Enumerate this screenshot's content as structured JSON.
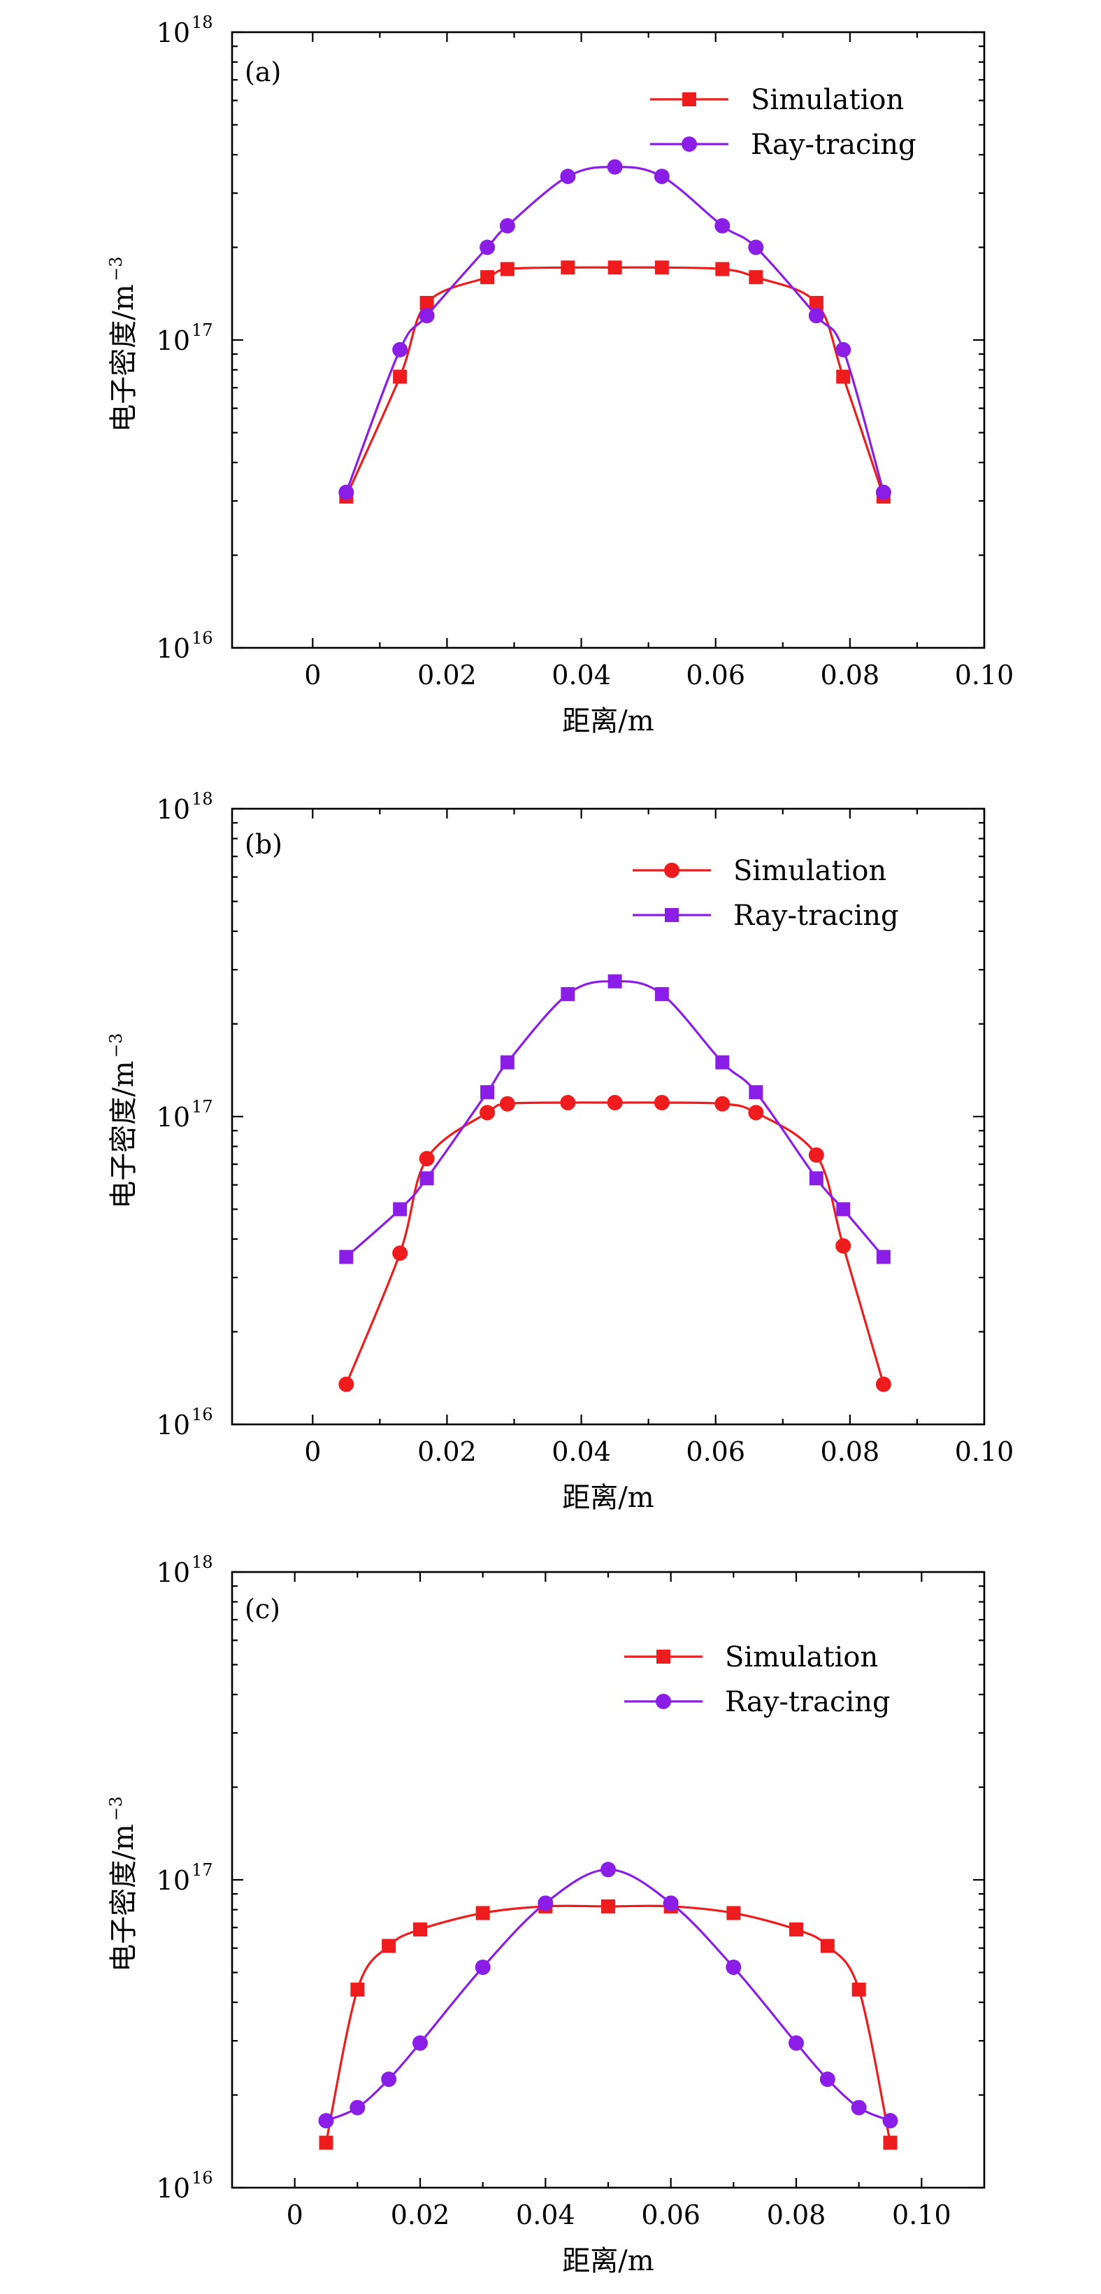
{
  "colors": {
    "red": "#ee1c1c",
    "purple": "#8b1ee6"
  },
  "chart_data": [
    {
      "type": "line",
      "panel_label": "(a)",
      "xlabel": "距离/m",
      "ylabel": "电子密度/m",
      "ylabel_exponent": "−3",
      "xlim": [
        -0.012,
        0.1
      ],
      "x_ticks": [
        "0",
        "0.02",
        "0.04",
        "0.06",
        "0.08",
        "0.10"
      ],
      "y_scale": "log",
      "ylim": [
        1e+16,
        1e+18
      ],
      "y_ticks": [
        {
          "base": "10",
          "exp": "16"
        },
        {
          "base": "10",
          "exp": "17"
        },
        {
          "base": "10",
          "exp": "18"
        }
      ],
      "legend_position": "top-right",
      "series": [
        {
          "name": "Simulation",
          "color": "#ee1c1c",
          "marker": "square",
          "x": [
            0.005,
            0.013,
            0.017,
            0.026,
            0.029,
            0.038,
            0.045,
            0.052,
            0.061,
            0.066,
            0.075,
            0.079,
            0.085
          ],
          "y": [
            3.1e+16,
            7.6e+16,
            1.32e+17,
            1.6e+17,
            1.7e+17,
            1.72e+17,
            1.72e+17,
            1.72e+17,
            1.7e+17,
            1.6e+17,
            1.32e+17,
            7.6e+16,
            3.1e+16
          ]
        },
        {
          "name": "Ray-tracing",
          "color": "#8b1ee6",
          "marker": "circle",
          "x": [
            0.005,
            0.013,
            0.017,
            0.026,
            0.029,
            0.038,
            0.045,
            0.052,
            0.061,
            0.066,
            0.075,
            0.079,
            0.085
          ],
          "y": [
            3.2e+16,
            9.3e+16,
            1.2e+17,
            2e+17,
            2.35e+17,
            3.4e+17,
            3.65e+17,
            3.4e+17,
            2.35e+17,
            2e+17,
            1.2e+17,
            9.3e+16,
            3.2e+16
          ]
        }
      ]
    },
    {
      "type": "line",
      "panel_label": "(b)",
      "xlabel": "距离/m",
      "ylabel": "电子密度/m",
      "ylabel_exponent": "−3",
      "xlim": [
        -0.012,
        0.1
      ],
      "x_ticks": [
        "0",
        "0.02",
        "0.04",
        "0.06",
        "0.08",
        "0.10"
      ],
      "y_scale": "log",
      "ylim": [
        1e+16,
        1e+18
      ],
      "y_ticks": [
        {
          "base": "10",
          "exp": "16"
        },
        {
          "base": "10",
          "exp": "17"
        },
        {
          "base": "10",
          "exp": "18"
        }
      ],
      "legend_position": "top-right",
      "series": [
        {
          "name": "Simulation",
          "color": "#ee1c1c",
          "marker": "circle",
          "x": [
            0.005,
            0.013,
            0.017,
            0.026,
            0.029,
            0.038,
            0.045,
            0.052,
            0.061,
            0.066,
            0.075,
            0.079,
            0.085
          ],
          "y": [
            1.35e+16,
            3.6e+16,
            7.3e+16,
            1.03e+17,
            1.1e+17,
            1.11e+17,
            1.11e+17,
            1.11e+17,
            1.1e+17,
            1.03e+17,
            7.5e+16,
            3.8e+16,
            1.35e+16
          ]
        },
        {
          "name": "Ray-tracing",
          "color": "#8b1ee6",
          "marker": "square",
          "x": [
            0.005,
            0.013,
            0.017,
            0.026,
            0.029,
            0.038,
            0.045,
            0.052,
            0.061,
            0.066,
            0.075,
            0.079,
            0.085
          ],
          "y": [
            3.5e+16,
            5e+16,
            6.3e+16,
            1.2e+17,
            1.5e+17,
            2.5e+17,
            2.75e+17,
            2.5e+17,
            1.5e+17,
            1.2e+17,
            6.3e+16,
            5e+16,
            3.5e+16
          ]
        }
      ]
    },
    {
      "type": "line",
      "panel_label": "(c)",
      "xlabel": "距离/m",
      "ylabel": "电子密度/m",
      "ylabel_exponent": "−3",
      "xlim": [
        -0.01,
        0.11
      ],
      "x_ticks": [
        "0",
        "0.02",
        "0.04",
        "0.06",
        "0.08",
        "0.10"
      ],
      "y_scale": "log",
      "ylim": [
        1e+16,
        1e+18
      ],
      "y_ticks": [
        {
          "base": "10",
          "exp": "16"
        },
        {
          "base": "10",
          "exp": "17"
        },
        {
          "base": "10",
          "exp": "18"
        }
      ],
      "legend_position": "top-right",
      "series": [
        {
          "name": "Simulation",
          "color": "#ee1c1c",
          "marker": "square",
          "x": [
            0.005,
            0.01,
            0.015,
            0.02,
            0.03,
            0.04,
            0.05,
            0.06,
            0.07,
            0.08,
            0.085,
            0.09,
            0.095
          ],
          "y": [
            1.4e+16,
            4.4e+16,
            6.1e+16,
            6.9e+16,
            7.8e+16,
            8.2e+16,
            8.2e+16,
            8.2e+16,
            7.8e+16,
            6.9e+16,
            6.1e+16,
            4.4e+16,
            1.4e+16
          ]
        },
        {
          "name": "Ray-tracing",
          "color": "#8b1ee6",
          "marker": "circle",
          "x": [
            0.005,
            0.01,
            0.015,
            0.02,
            0.03,
            0.04,
            0.05,
            0.06,
            0.07,
            0.08,
            0.085,
            0.09,
            0.095
          ],
          "y": [
            1.65e+16,
            1.82e+16,
            2.25e+16,
            2.95e+16,
            5.2e+16,
            8.4e+16,
            1.08e+17,
            8.4e+16,
            5.2e+16,
            2.95e+16,
            2.25e+16,
            1.82e+16,
            1.65e+16
          ]
        }
      ]
    }
  ]
}
